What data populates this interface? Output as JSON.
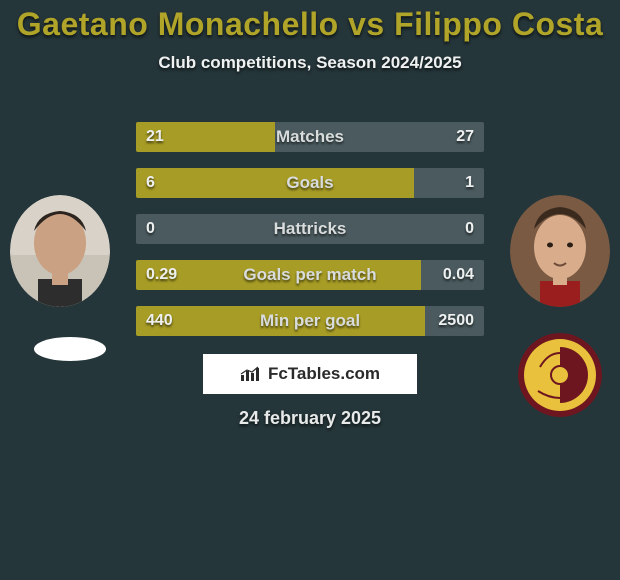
{
  "colors": {
    "background": "#25363a",
    "title_color": "#b0a429",
    "subtitle_color": "#f0f2f2",
    "bar_left": "#a79c25",
    "bar_right": "#4a5a5e",
    "bar_label_color": "#d9dcdc",
    "bar_value_color": "#eef0f0",
    "brand_bg": "#ffffff",
    "brand_text": "#2a2a2a",
    "date_color": "#e8eaea"
  },
  "typography": {
    "title_fontsize": 32,
    "subtitle_fontsize": 17,
    "bar_label_fontsize": 17,
    "bar_value_fontsize": 16,
    "brand_fontsize": 17,
    "date_fontsize": 18
  },
  "title": "Gaetano Monachello vs Filippo Costa",
  "subtitle": "Club competitions, Season 2024/2025",
  "date": "24 february 2025",
  "brand": {
    "text": "FcTables.com",
    "icon_name": "bar-chart-icon"
  },
  "players": {
    "left": {
      "name": "Gaetano Monachello"
    },
    "right": {
      "name": "Filippo Costa"
    }
  },
  "stats": [
    {
      "label": "Matches",
      "left_raw": 21,
      "right_raw": 27,
      "left_text": "21",
      "right_text": "27",
      "left_pct": 40,
      "right_pct": 60
    },
    {
      "label": "Goals",
      "left_raw": 6,
      "right_raw": 1,
      "left_text": "6",
      "right_text": "1",
      "left_pct": 80,
      "right_pct": 20
    },
    {
      "label": "Hattricks",
      "left_raw": 0,
      "right_raw": 0,
      "left_text": "0",
      "right_text": "0",
      "left_pct": 0,
      "right_pct": 100
    },
    {
      "label": "Goals per match",
      "left_raw": 0.29,
      "right_raw": 0.04,
      "left_text": "0.29",
      "right_text": "0.04",
      "left_pct": 82,
      "right_pct": 18
    },
    {
      "label": "Min per goal",
      "left_raw": 440,
      "right_raw": 2500,
      "left_text": "440",
      "right_text": "2500",
      "left_pct": 83,
      "right_pct": 17
    }
  ]
}
